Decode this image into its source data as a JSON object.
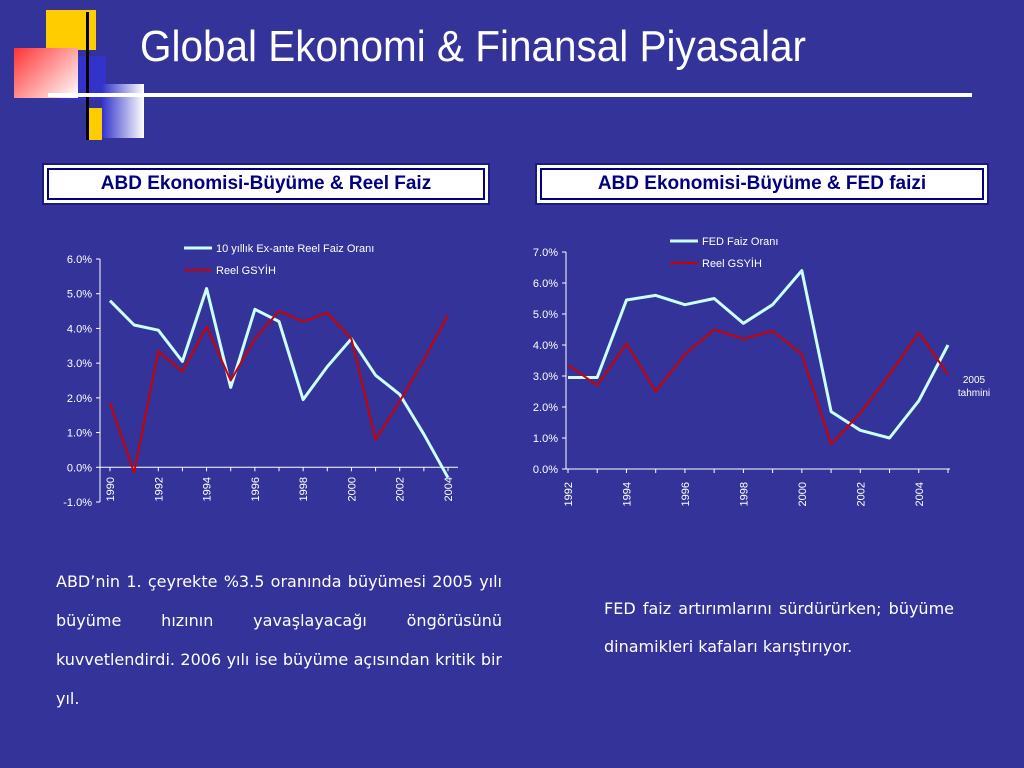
{
  "title": "Global Ekonomi & Finansal Piyasalar",
  "colors": {
    "background": "#33339a",
    "series_white": "#ccffff",
    "series_red": "#cc0000"
  },
  "left_box": {
    "label": "ABD Ekonomisi-Büyüme & Reel Faiz"
  },
  "right_box": {
    "label": "ABD Ekonomisi-Büyüme & FED faizi"
  },
  "right_note": {
    "line1": "2005",
    "line2": "tahmini"
  },
  "left_text": "ABD’nin 1. çeyrekte %3.5 oranında büyümesi 2005 yılı büyüme hızının yavaşlayacağı öngörüsünü kuvvetlendirdi. 2006 yılı ise büyüme açısından kritik bir yıl.",
  "right_text": "FED faiz artırımlarını sürdürürken; büyüme dinamikleri kafaları karıştırıyor.",
  "chart_data": [
    {
      "type": "line",
      "x": [
        1990,
        1991,
        1992,
        1993,
        1994,
        1995,
        1996,
        1997,
        1998,
        1999,
        2000,
        2001,
        2002,
        2003,
        2004
      ],
      "xticks": [
        "1990",
        "1992",
        "1994",
        "1996",
        "1998",
        "2000",
        "2002",
        "2004"
      ],
      "yticks": [
        "-1.0%",
        "0.0%",
        "1.0%",
        "2.0%",
        "3.0%",
        "4.0%",
        "5.0%",
        "6.0%"
      ],
      "ylim": [
        -1,
        6
      ],
      "legend_position": "top",
      "series": [
        {
          "name": "10 yıllık Ex-ante Reel Faiz Oranı",
          "color": "#ccffff",
          "values": [
            4.8,
            4.1,
            3.95,
            3.05,
            5.15,
            2.3,
            4.55,
            4.2,
            1.95,
            2.9,
            3.7,
            2.65,
            2.1,
            0.95,
            -0.3
          ]
        },
        {
          "name": "Reel GSYİH",
          "color": "#cc0000",
          "values": [
            1.85,
            -0.15,
            3.35,
            2.75,
            4.05,
            2.5,
            3.7,
            4.5,
            4.2,
            4.45,
            3.7,
            0.8,
            1.9,
            3.1,
            4.4
          ]
        }
      ]
    },
    {
      "type": "line",
      "x": [
        1992,
        1993,
        1994,
        1995,
        1996,
        1997,
        1998,
        1999,
        2000,
        2001,
        2002,
        2003,
        2004,
        2005
      ],
      "xticks": [
        "1992",
        "1994",
        "1996",
        "1998",
        "2000",
        "2002",
        "2004"
      ],
      "yticks": [
        "0.0%",
        "1.0%",
        "2.0%",
        "3.0%",
        "4.0%",
        "5.0%",
        "6.0%",
        "7.0%"
      ],
      "ylim": [
        0,
        7
      ],
      "legend_position": "top",
      "series": [
        {
          "name": "FED Faiz Oranı",
          "color": "#ccffff",
          "values": [
            2.95,
            2.95,
            5.45,
            5.6,
            5.3,
            5.5,
            4.7,
            5.3,
            6.4,
            1.85,
            1.25,
            1.0,
            2.2,
            4.0
          ]
        },
        {
          "name": "Reel GSYİH",
          "color": "#cc0000",
          "values": [
            3.35,
            2.7,
            4.05,
            2.5,
            3.7,
            4.5,
            4.2,
            4.45,
            3.7,
            0.8,
            1.8,
            3.05,
            4.4,
            3.05
          ]
        }
      ]
    }
  ]
}
